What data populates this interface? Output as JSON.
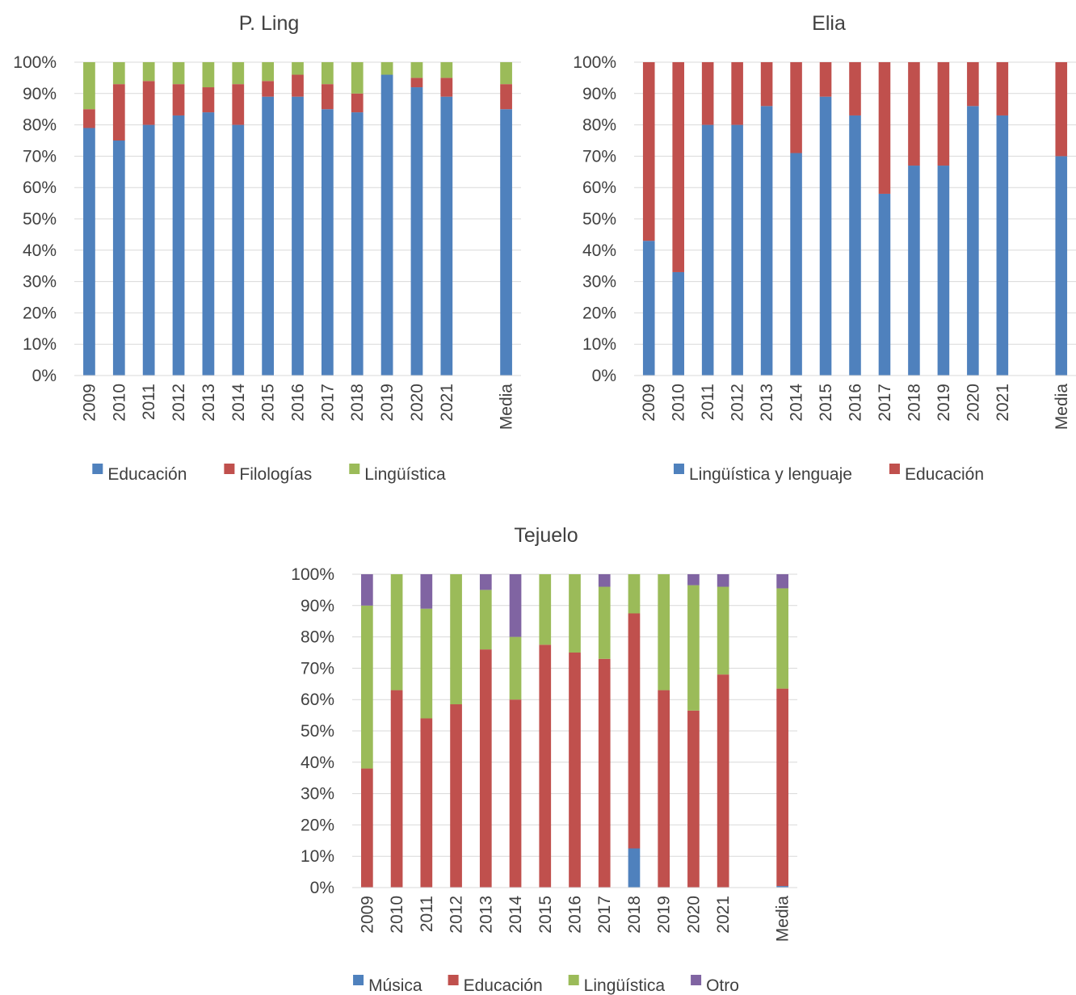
{
  "chart_data": [
    {
      "type": "bar",
      "stacked": true,
      "title": "P. Ling",
      "categories": [
        "2009",
        "2010",
        "2011",
        "2012",
        "2013",
        "2014",
        "2015",
        "2016",
        "2017",
        "2018",
        "2019",
        "2020",
        "2021",
        "",
        "Media"
      ],
      "ylim": [
        0,
        100
      ],
      "yticks": [
        "0%",
        "10%",
        "20%",
        "30%",
        "40%",
        "50%",
        "60%",
        "70%",
        "80%",
        "90%",
        "100%"
      ],
      "grid": true,
      "legend_position": "bottom",
      "series": [
        {
          "name": "Educación",
          "color": "#4F81BD",
          "values": [
            79,
            75,
            80,
            83,
            84,
            80,
            89,
            89,
            85,
            84,
            96,
            92,
            89,
            null,
            85
          ]
        },
        {
          "name": "Filologías",
          "color": "#C0504D",
          "values": [
            6,
            18,
            14,
            10,
            8,
            13,
            5,
            7,
            8,
            6,
            0,
            3,
            6,
            null,
            8
          ]
        },
        {
          "name": "Lingüística",
          "color": "#9BBB59",
          "values": [
            15,
            7,
            6,
            7,
            8,
            7,
            6,
            4,
            7,
            10,
            4,
            5,
            5,
            null,
            7
          ]
        }
      ]
    },
    {
      "type": "bar",
      "stacked": true,
      "title": "Elia",
      "categories": [
        "2009",
        "2010",
        "2011",
        "2012",
        "2013",
        "2014",
        "2015",
        "2016",
        "2017",
        "2018",
        "2019",
        "2020",
        "2021",
        "",
        "Media"
      ],
      "ylim": [
        0,
        100
      ],
      "yticks": [
        "0%",
        "10%",
        "20%",
        "30%",
        "40%",
        "50%",
        "60%",
        "70%",
        "80%",
        "90%",
        "100%"
      ],
      "grid": true,
      "legend_position": "bottom",
      "series": [
        {
          "name": "Lingüística y lenguaje",
          "color": "#4F81BD",
          "values": [
            43,
            33,
            80,
            80,
            86,
            71,
            89,
            83,
            58,
            67,
            67,
            86,
            83,
            null,
            70
          ]
        },
        {
          "name": "Educación",
          "color": "#C0504D",
          "values": [
            57,
            67,
            20,
            20,
            14,
            29,
            11,
            17,
            42,
            33,
            33,
            14,
            17,
            null,
            30
          ]
        }
      ]
    },
    {
      "type": "bar",
      "stacked": true,
      "title": "Tejuelo",
      "categories": [
        "2009",
        "2010",
        "2011",
        "2012",
        "2013",
        "2014",
        "2015",
        "2016",
        "2017",
        "2018",
        "2019",
        "2020",
        "2021",
        "",
        "Media"
      ],
      "ylim": [
        0,
        100
      ],
      "yticks": [
        "0%",
        "10%",
        "20%",
        "30%",
        "40%",
        "50%",
        "60%",
        "70%",
        "80%",
        "90%",
        "100%"
      ],
      "grid": true,
      "legend_position": "bottom",
      "series": [
        {
          "name": "Música",
          "color": "#4F81BD",
          "values": [
            0,
            0,
            0,
            0,
            0,
            0,
            0,
            0,
            0,
            12.5,
            0,
            0,
            0,
            null,
            0.5
          ]
        },
        {
          "name": "Educación",
          "color": "#C0504D",
          "values": [
            38,
            63,
            54,
            58.5,
            76,
            60,
            77.5,
            75,
            73,
            75,
            63,
            56.5,
            68,
            null,
            63
          ]
        },
        {
          "name": "Lingüística",
          "color": "#9BBB59",
          "values": [
            52,
            37,
            35,
            41.5,
            19,
            20,
            22.5,
            25,
            23,
            12.5,
            37,
            40,
            28,
            null,
            32
          ]
        },
        {
          "name": "Otro",
          "color": "#8064A2",
          "values": [
            10,
            0,
            11,
            0,
            5,
            20,
            0,
            0,
            4,
            0,
            0,
            3.5,
            4,
            null,
            4.5
          ]
        }
      ]
    }
  ]
}
